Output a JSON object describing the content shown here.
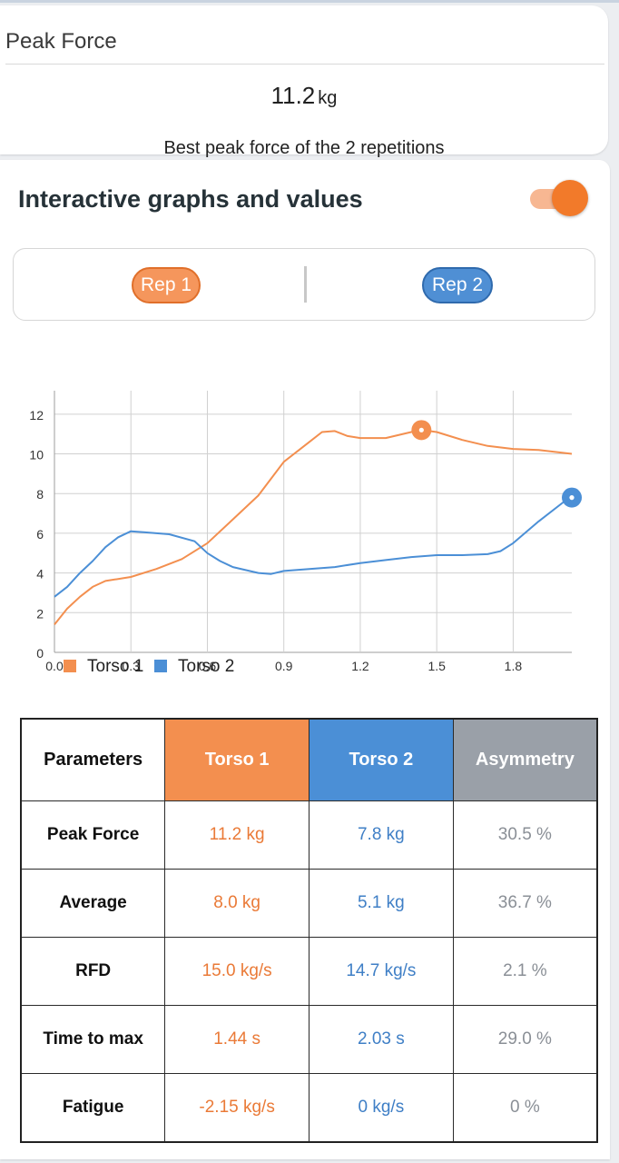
{
  "peak_card": {
    "title": "Peak Force",
    "value": "11.2",
    "unit": "kg",
    "caption": "Best peak force of the 2 repetitions"
  },
  "graphs": {
    "title": "Interactive graphs and values",
    "toggle_on": true,
    "reps": [
      "Rep 1",
      "Rep 2"
    ]
  },
  "colors": {
    "torso1": "#f38f4f",
    "torso2": "#4b8fd6",
    "asymmetry": "#9aa0a8"
  },
  "chart_data": {
    "type": "line",
    "xlim": [
      0,
      2.03
    ],
    "ylim": [
      0,
      13
    ],
    "x_ticks": [
      "0.0",
      "0.3",
      "0.6",
      "0.9",
      "1.2",
      "1.5",
      "1.8"
    ],
    "y_ticks": [
      "0",
      "2",
      "4",
      "6",
      "8",
      "10",
      "12"
    ],
    "legend_position": "bottom-left",
    "series": [
      {
        "name": "Torso 1",
        "color": "#f38f4f",
        "points": [
          [
            0,
            1.4
          ],
          [
            0.05,
            2.2
          ],
          [
            0.1,
            2.8
          ],
          [
            0.15,
            3.3
          ],
          [
            0.2,
            3.6
          ],
          [
            0.3,
            3.8
          ],
          [
            0.4,
            4.2
          ],
          [
            0.5,
            4.7
          ],
          [
            0.6,
            5.5
          ],
          [
            0.7,
            6.7
          ],
          [
            0.8,
            7.9
          ],
          [
            0.9,
            9.6
          ],
          [
            1.0,
            10.6
          ],
          [
            1.05,
            11.1
          ],
          [
            1.1,
            11.15
          ],
          [
            1.15,
            10.9
          ],
          [
            1.2,
            10.8
          ],
          [
            1.3,
            10.8
          ],
          [
            1.4,
            11.1
          ],
          [
            1.44,
            11.2
          ],
          [
            1.5,
            11.1
          ],
          [
            1.6,
            10.7
          ],
          [
            1.7,
            10.4
          ],
          [
            1.8,
            10.25
          ],
          [
            1.9,
            10.2
          ],
          [
            2.03,
            10.0
          ]
        ]
      },
      {
        "name": "Torso 2",
        "color": "#4b8fd6",
        "points": [
          [
            0,
            2.8
          ],
          [
            0.05,
            3.3
          ],
          [
            0.1,
            4.0
          ],
          [
            0.15,
            4.6
          ],
          [
            0.2,
            5.3
          ],
          [
            0.25,
            5.8
          ],
          [
            0.3,
            6.1
          ],
          [
            0.35,
            6.05
          ],
          [
            0.45,
            5.95
          ],
          [
            0.55,
            5.6
          ],
          [
            0.6,
            5.0
          ],
          [
            0.65,
            4.6
          ],
          [
            0.7,
            4.3
          ],
          [
            0.8,
            4.0
          ],
          [
            0.85,
            3.95
          ],
          [
            0.9,
            4.1
          ],
          [
            1.0,
            4.2
          ],
          [
            1.1,
            4.3
          ],
          [
            1.2,
            4.5
          ],
          [
            1.3,
            4.65
          ],
          [
            1.4,
            4.8
          ],
          [
            1.5,
            4.9
          ],
          [
            1.6,
            4.9
          ],
          [
            1.7,
            4.95
          ],
          [
            1.75,
            5.1
          ],
          [
            1.8,
            5.5
          ],
          [
            1.9,
            6.6
          ],
          [
            2.0,
            7.6
          ],
          [
            2.03,
            7.8
          ]
        ]
      }
    ],
    "markers": [
      {
        "series": "Torso 1",
        "x": 1.44,
        "y": 11.2
      },
      {
        "series": "Torso 2",
        "x": 2.03,
        "y": 7.8
      }
    ]
  },
  "table": {
    "headers": [
      "Parameters",
      "Torso 1",
      "Torso 2",
      "Asymmetry"
    ],
    "rows": [
      [
        "Peak Force",
        "11.2 kg",
        "7.8 kg",
        "30.5 %"
      ],
      [
        "Average",
        "8.0 kg",
        "5.1 kg",
        "36.7 %"
      ],
      [
        "RFD",
        "15.0 kg/s",
        "14.7 kg/s",
        "2.1 %"
      ],
      [
        "Time to max",
        "1.44 s",
        "2.03 s",
        "29.0 %"
      ],
      [
        "Fatigue",
        "-2.15 kg/s",
        "0 kg/s",
        "0 %"
      ]
    ]
  }
}
